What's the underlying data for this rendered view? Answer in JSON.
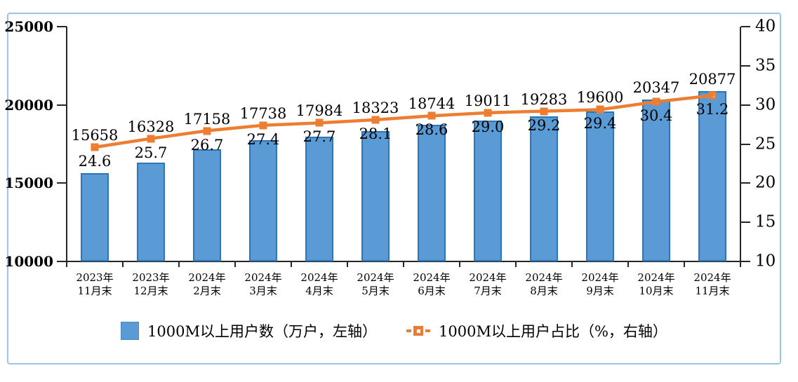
{
  "chart_data": {
    "type": "combo (bar + line)",
    "title": "",
    "categories": [
      {
        "l1": "2023年",
        "l2": "11月末"
      },
      {
        "l1": "2023年",
        "l2": "12月末"
      },
      {
        "l1": "2024年",
        "l2": "2月末"
      },
      {
        "l1": "2024年",
        "l2": "3月末"
      },
      {
        "l1": "2024年",
        "l2": "4月末"
      },
      {
        "l1": "2024年",
        "l2": "5月末"
      },
      {
        "l1": "2024年",
        "l2": "6月末"
      },
      {
        "l1": "2024年",
        "l2": "7月末"
      },
      {
        "l1": "2024年",
        "l2": "8月末"
      },
      {
        "l1": "2024年",
        "l2": "9月末"
      },
      {
        "l1": "2024年",
        "l2": "10月末"
      },
      {
        "l1": "2024年",
        "l2": "11月末"
      }
    ],
    "series": [
      {
        "name": "1000M以上用户数（万户，左轴）",
        "type": "bar",
        "axis": "left",
        "values": [
          15658,
          16328,
          17158,
          17738,
          17984,
          18323,
          18744,
          19011,
          19283,
          19600,
          20347,
          20877
        ],
        "labels": [
          "15658",
          "16328",
          "17158",
          "17738",
          "17984",
          "18323",
          "18744",
          "19011",
          "19283",
          "19600",
          "20347",
          "20877"
        ]
      },
      {
        "name": "1000M以上用户占比（%，右轴）",
        "type": "line",
        "axis": "right",
        "values": [
          24.6,
          25.7,
          26.7,
          27.4,
          27.7,
          28.1,
          28.6,
          29.0,
          29.2,
          29.4,
          30.4,
          31.2
        ],
        "labels": [
          "24.6",
          "25.7",
          "26.7",
          "27.4",
          "27.7",
          "28.1",
          "28.6",
          "29.0",
          "29.2",
          "29.4",
          "30.4",
          "31.2"
        ]
      }
    ],
    "left_axis": {
      "min": 10000,
      "max": 25000,
      "ticks": [
        "25000",
        "20000",
        "15000",
        "10000"
      ],
      "tick_values": [
        25000,
        20000,
        15000,
        10000
      ]
    },
    "right_axis": {
      "min": 10,
      "max": 40,
      "ticks": [
        "40",
        "35",
        "30",
        "25",
        "20",
        "15",
        "10"
      ],
      "tick_values": [
        40,
        35,
        30,
        25,
        20,
        15,
        10
      ]
    },
    "grid": "off",
    "legend_position": "bottom",
    "colors": {
      "bar_fill": "#5B9BD5",
      "bar_border": "#2E75B6",
      "line": "#ED7D31",
      "frame_border": "#9DC3E6",
      "axis": "#262626",
      "text": "#000000"
    }
  }
}
